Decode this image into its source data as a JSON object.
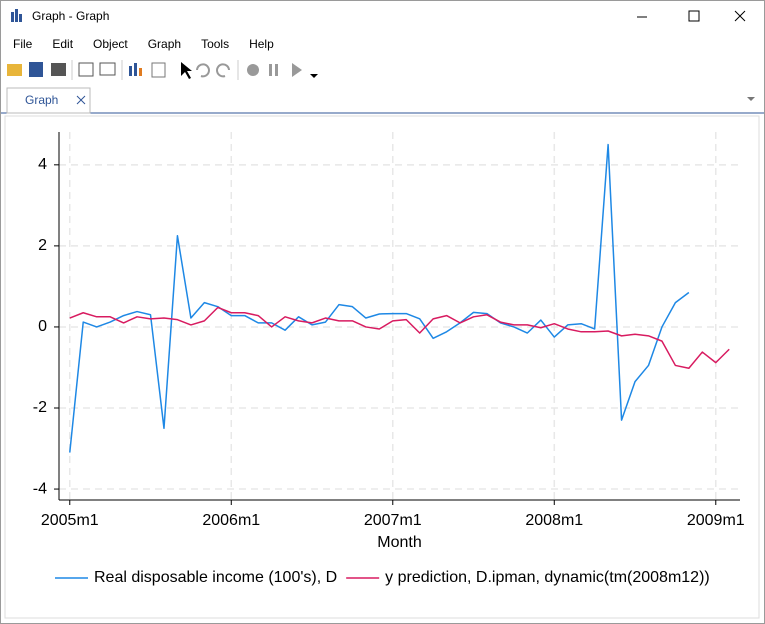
{
  "window": {
    "title": "Graph - Graph",
    "menu": [
      "File",
      "Edit",
      "Object",
      "Graph",
      "Tools",
      "Help"
    ],
    "tab": "Graph"
  },
  "chart_data": {
    "type": "line",
    "x_label": "Month",
    "x": [
      540,
      541,
      542,
      543,
      544,
      545,
      546,
      547,
      548,
      549,
      550,
      551,
      552,
      553,
      554,
      555,
      556,
      557,
      558,
      559,
      560,
      561,
      562,
      563,
      564,
      565,
      566,
      567,
      568,
      569,
      570,
      571,
      572,
      573,
      574,
      575,
      576,
      577,
      578,
      579,
      580,
      581,
      582,
      583,
      584,
      585,
      586,
      587,
      588,
      589
    ],
    "xlim": [
      539.2,
      589.8
    ],
    "xticks": [
      {
        "value": 540,
        "label": "2005m1"
      },
      {
        "value": 552,
        "label": "2006m1"
      },
      {
        "value": 564,
        "label": "2007m1"
      },
      {
        "value": 576,
        "label": "2008m1"
      },
      {
        "value": 588,
        "label": "2009m1"
      }
    ],
    "ylim": [
      -4.27,
      4.81
    ],
    "yticks": [
      -4,
      -2,
      0,
      2,
      4
    ],
    "grid": true,
    "legend": "bottom",
    "series": [
      {
        "name": "Real disposable income (100's), D",
        "color": "#1e88e5",
        "values": [
          -3.1,
          0.12,
          0.0,
          0.12,
          0.28,
          0.38,
          0.3,
          -2.5,
          2.25,
          0.22,
          0.6,
          0.5,
          0.28,
          0.28,
          0.1,
          0.1,
          -0.08,
          0.25,
          0.05,
          0.12,
          0.55,
          0.5,
          0.22,
          0.32,
          0.33,
          0.33,
          0.2,
          -0.28,
          -0.12,
          0.1,
          0.36,
          0.33,
          0.1,
          0.0,
          -0.15,
          0.17,
          -0.25,
          0.05,
          0.08,
          -0.05,
          4.5,
          -2.3,
          -1.35,
          -0.95,
          0.0,
          0.6,
          0.85,
          null,
          null,
          null
        ]
      },
      {
        "name": "y prediction, D.ipman, dynamic(tm(2008m12))",
        "color": "#d81b60",
        "values": [
          0.22,
          0.35,
          0.25,
          0.25,
          0.1,
          0.25,
          0.2,
          0.22,
          0.18,
          0.05,
          0.15,
          0.48,
          0.35,
          0.35,
          0.28,
          0.0,
          0.25,
          0.15,
          0.1,
          0.22,
          0.15,
          0.15,
          0.0,
          -0.05,
          0.15,
          0.18,
          -0.15,
          0.2,
          0.28,
          0.1,
          0.25,
          0.3,
          0.12,
          0.05,
          0.05,
          -0.02,
          0.08,
          -0.05,
          -0.12,
          -0.12,
          -0.1,
          -0.22,
          -0.18,
          -0.22,
          -0.35,
          -0.95,
          -1.02,
          -0.62,
          -0.88,
          -0.55
        ]
      }
    ]
  }
}
